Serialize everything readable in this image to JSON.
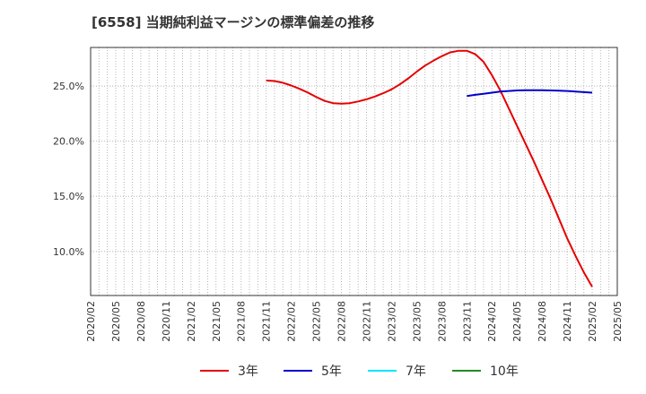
{
  "chart_data": {
    "type": "line",
    "title": "[6558]  当期純利益マージンの標準偏差の推移",
    "xlabel": "",
    "ylabel": "",
    "x_range": [
      "2020/02",
      "2025/05"
    ],
    "xticks": [
      "2020/02",
      "2020/05",
      "2020/08",
      "2020/11",
      "2021/02",
      "2021/05",
      "2021/08",
      "2021/11",
      "2022/02",
      "2022/05",
      "2022/08",
      "2022/11",
      "2023/02",
      "2023/05",
      "2023/08",
      "2023/11",
      "2024/02",
      "2024/05",
      "2024/08",
      "2024/11",
      "2025/02",
      "2025/05"
    ],
    "ylim": [
      6.0,
      28.5
    ],
    "yticks": [
      10.0,
      15.0,
      20.0,
      25.0
    ],
    "ytick_labels": [
      "10.0%",
      "15.0%",
      "20.0%",
      "25.0%"
    ],
    "grid": true,
    "legend_position": "bottom",
    "series": [
      {
        "name": "3年",
        "color": "#e60000",
        "points": [
          [
            "2021/11",
            25.5
          ],
          [
            "2021/12",
            25.45
          ],
          [
            "2022/01",
            25.3
          ],
          [
            "2022/02",
            25.05
          ],
          [
            "2022/03",
            24.75
          ],
          [
            "2022/04",
            24.4
          ],
          [
            "2022/05",
            24.0
          ],
          [
            "2022/06",
            23.65
          ],
          [
            "2022/07",
            23.45
          ],
          [
            "2022/08",
            23.4
          ],
          [
            "2022/09",
            23.45
          ],
          [
            "2022/10",
            23.6
          ],
          [
            "2022/11",
            23.8
          ],
          [
            "2022/12",
            24.05
          ],
          [
            "2023/01",
            24.35
          ],
          [
            "2023/02",
            24.7
          ],
          [
            "2023/03",
            25.15
          ],
          [
            "2023/04",
            25.7
          ],
          [
            "2023/05",
            26.3
          ],
          [
            "2023/06",
            26.85
          ],
          [
            "2023/07",
            27.3
          ],
          [
            "2023/08",
            27.7
          ],
          [
            "2023/09",
            28.05
          ],
          [
            "2023/10",
            28.2
          ],
          [
            "2023/11",
            28.2
          ],
          [
            "2023/12",
            27.9
          ],
          [
            "2024/01",
            27.2
          ],
          [
            "2024/02",
            26.0
          ],
          [
            "2024/03",
            24.6
          ],
          [
            "2024/04",
            23.0
          ],
          [
            "2024/05",
            21.4
          ],
          [
            "2024/06",
            19.8
          ],
          [
            "2024/07",
            18.2
          ],
          [
            "2024/08",
            16.5
          ],
          [
            "2024/09",
            14.8
          ],
          [
            "2024/10",
            13.0
          ],
          [
            "2024/11",
            11.2
          ],
          [
            "2024/12",
            9.6
          ],
          [
            "2025/01",
            8.1
          ],
          [
            "2025/02",
            6.8
          ]
        ]
      },
      {
        "name": "5年",
        "color": "#0000cc",
        "points": [
          [
            "2023/11",
            24.1
          ],
          [
            "2023/12",
            24.2
          ],
          [
            "2024/01",
            24.3
          ],
          [
            "2024/02",
            24.4
          ],
          [
            "2024/03",
            24.5
          ],
          [
            "2024/04",
            24.55
          ],
          [
            "2024/05",
            24.6
          ],
          [
            "2024/06",
            24.62
          ],
          [
            "2024/07",
            24.62
          ],
          [
            "2024/08",
            24.62
          ],
          [
            "2024/09",
            24.6
          ],
          [
            "2024/10",
            24.58
          ],
          [
            "2024/11",
            24.55
          ],
          [
            "2024/12",
            24.5
          ],
          [
            "2025/01",
            24.45
          ],
          [
            "2025/02",
            24.4
          ]
        ]
      },
      {
        "name": "7年",
        "color": "#00e5ff",
        "points": []
      },
      {
        "name": "10年",
        "color": "#228b22",
        "points": []
      }
    ]
  }
}
